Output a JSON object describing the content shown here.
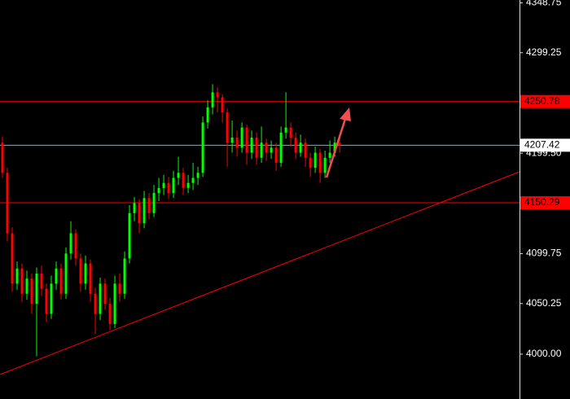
{
  "chart_data": {
    "type": "candlestick",
    "up_color": "#00ff00",
    "down_color": "#ff0000",
    "open": [
      4210,
      4180,
      4120,
      4070,
      4085,
      4060,
      4075,
      4050,
      4080,
      4065,
      4040,
      4070,
      4085,
      4060,
      4100,
      4120,
      4095,
      4070,
      4090,
      4060,
      4040,
      4070,
      4050,
      4030,
      4070,
      4060,
      4095,
      4140,
      4150,
      4130,
      4155,
      4140,
      4160,
      4165,
      4170,
      4160,
      4175,
      4180,
      4165,
      4170,
      4175,
      4180,
      4230,
      4245,
      4260,
      4255,
      4240,
      4210,
      4215,
      4205,
      4225,
      4200,
      4215,
      4195,
      4210,
      4200,
      4205,
      4190,
      4220,
      4225,
      4215,
      4200,
      4210,
      4195,
      4185,
      4200,
      4180,
      4195,
      4200,
      4210
    ],
    "high": [
      4216,
      4185,
      4126,
      4092,
      4090,
      4083,
      4080,
      4086,
      4088,
      4070,
      4078,
      4092,
      4090,
      4106,
      4132,
      4124,
      4100,
      4098,
      4094,
      4066,
      4076,
      4075,
      4056,
      4078,
      4080,
      4102,
      4148,
      4156,
      4154,
      4162,
      4160,
      4168,
      4175,
      4178,
      4176,
      4182,
      4196,
      4185,
      4178,
      4190,
      4186,
      4236,
      4252,
      4268,
      4265,
      4258,
      4244,
      4232,
      4222,
      4230,
      4228,
      4222,
      4220,
      4226,
      4214,
      4212,
      4210,
      4226,
      4260,
      4230,
      4220,
      4218,
      4214,
      4200,
      4206,
      4204,
      4202,
      4212,
      4216,
      4214
    ],
    "low": [
      4175,
      4112,
      4062,
      4064,
      4052,
      4054,
      4040,
      3998,
      4058,
      4032,
      4035,
      4064,
      4054,
      4055,
      4094,
      4088,
      4062,
      4064,
      4052,
      4020,
      4034,
      4044,
      4024,
      4026,
      4052,
      4055,
      4090,
      4132,
      4120,
      4125,
      4134,
      4136,
      4152,
      4158,
      4154,
      4155,
      4168,
      4158,
      4160,
      4163,
      4168,
      4176,
      4224,
      4238,
      4240,
      4230,
      4186,
      4200,
      4196,
      4200,
      4188,
      4194,
      4188,
      4190,
      4192,
      4194,
      4182,
      4186,
      4214,
      4206,
      4194,
      4196,
      4186,
      4176,
      4180,
      4170,
      4175,
      4190,
      4196,
      4200
    ],
    "close": [
      4180,
      4120,
      4070,
      4085,
      4060,
      4075,
      4050,
      4080,
      4065,
      4040,
      4070,
      4085,
      4060,
      4100,
      4120,
      4095,
      4070,
      4090,
      4060,
      4040,
      4070,
      4050,
      4030,
      4070,
      4060,
      4095,
      4140,
      4150,
      4130,
      4155,
      4140,
      4160,
      4165,
      4170,
      4160,
      4175,
      4180,
      4165,
      4170,
      4175,
      4180,
      4230,
      4245,
      4260,
      4255,
      4240,
      4210,
      4215,
      4205,
      4225,
      4200,
      4215,
      4195,
      4210,
      4200,
      4205,
      4190,
      4220,
      4225,
      4215,
      4200,
      4210,
      4195,
      4185,
      4200,
      4180,
      4195,
      4200,
      4210,
      4207.42
    ],
    "xlim": [
      0,
      106.3
    ],
    "ylim": [
      3955.5,
      4351.6
    ],
    "yticks": [
      {
        "value": 4000,
        "label": "4000.00"
      },
      4050.25,
      4099.75,
      {
        "value": 4199.5,
        "label": "4199.50"
      },
      4299.25,
      4348.75
    ],
    "hlines": [
      {
        "value": 4250.78,
        "color": "#ff0000"
      },
      {
        "value": 4150.29,
        "color": "#ff0000"
      }
    ],
    "current_price": {
      "value": 4207.42,
      "color": "#8fa8b8"
    },
    "trendline": {
      "x": [
        0,
        106.3
      ],
      "y": [
        3979.8,
        4181.1
      ],
      "color": "#ff0000"
    }
  }
}
